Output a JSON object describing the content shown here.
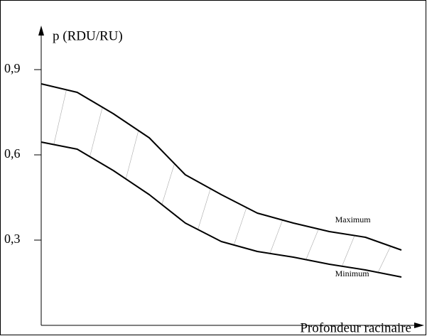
{
  "chart_data": {
    "type": "line",
    "y_label": "p (RDU/RU)",
    "x_label": "Profondeur racinaire",
    "categories": [
      null,
      null,
      null,
      null,
      null,
      null,
      null,
      null,
      null,
      null,
      null
    ],
    "series": [
      {
        "name": "Maximum",
        "color": "#000000",
        "values": [
          0.85,
          0.82,
          0.745,
          0.66,
          0.53,
          0.46,
          0.395,
          0.36,
          0.33,
          0.31,
          0.265
        ]
      },
      {
        "name": "Minimum",
        "color": "#000000",
        "values": [
          0.645,
          0.62,
          0.545,
          0.46,
          0.36,
          0.295,
          0.26,
          0.24,
          0.215,
          0.195,
          0.17
        ]
      }
    ],
    "ylim": [
      0,
      1.05
    ],
    "yticks": [
      {
        "value": 0.9,
        "label": "0,9"
      },
      {
        "value": 0.6,
        "label": "0,6"
      },
      {
        "value": 0.3,
        "label": "0,3"
      }
    ],
    "grid": false,
    "hatch": true
  }
}
